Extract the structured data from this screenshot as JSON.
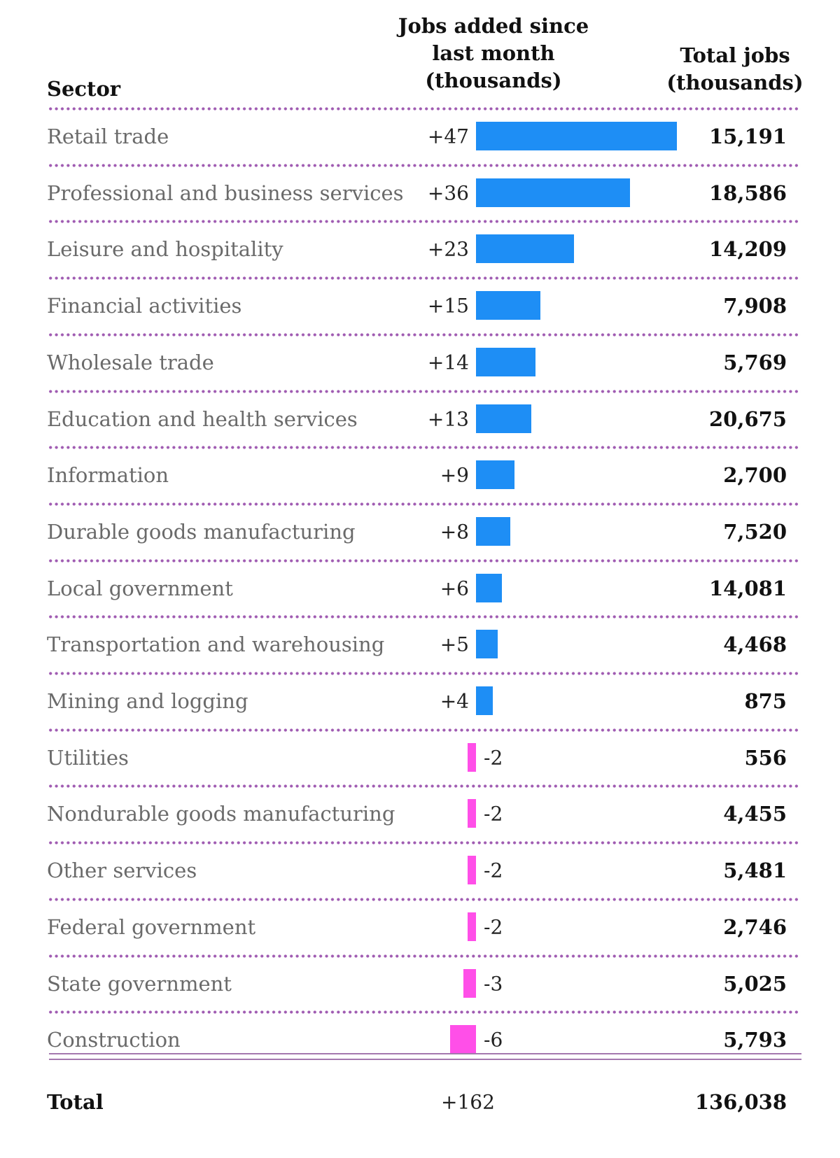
{
  "header": {
    "sector": "Sector",
    "jobs_added": "Jobs added since last month (thousands)",
    "total_jobs": "Total jobs (thousands)"
  },
  "colors": {
    "positive": "#1e8ef5",
    "negative": "#ff4fe8",
    "divider": "#a05cb2"
  },
  "chart_data": {
    "type": "bar",
    "orientation": "horizontal",
    "categories": [
      "Retail trade",
      "Professional and business services",
      "Leisure and hospitality",
      "Financial activities",
      "Wholesale trade",
      "Education and health services",
      "Information",
      "Durable goods manufacturing",
      "Local government",
      "Transportation and warehousing",
      "Mining and logging",
      "Utilities",
      "Nondurable goods manufacturing",
      "Other services",
      "Federal government",
      "State government",
      "Construction"
    ],
    "values": [
      47,
      36,
      23,
      15,
      14,
      13,
      9,
      8,
      6,
      5,
      4,
      -2,
      -2,
      -2,
      -2,
      -3,
      -6
    ],
    "value_labels": [
      "+47",
      "+36",
      "+23",
      "+15",
      "+14",
      "+13",
      "+9",
      "+8",
      "+6",
      "+5",
      "+4",
      "-2",
      "-2",
      "-2",
      "-2",
      "-3",
      "-6"
    ],
    "totals": [
      "15,191",
      "18,586",
      "14,209",
      "7,908",
      "5,769",
      "20,675",
      "2,700",
      "7,520",
      "14,081",
      "4,468",
      "875",
      "556",
      "4,455",
      "5,481",
      "2,746",
      "5,025",
      "5,793"
    ]
  },
  "footer": {
    "label": "Total",
    "change": "+162",
    "total_jobs": "136,038"
  }
}
